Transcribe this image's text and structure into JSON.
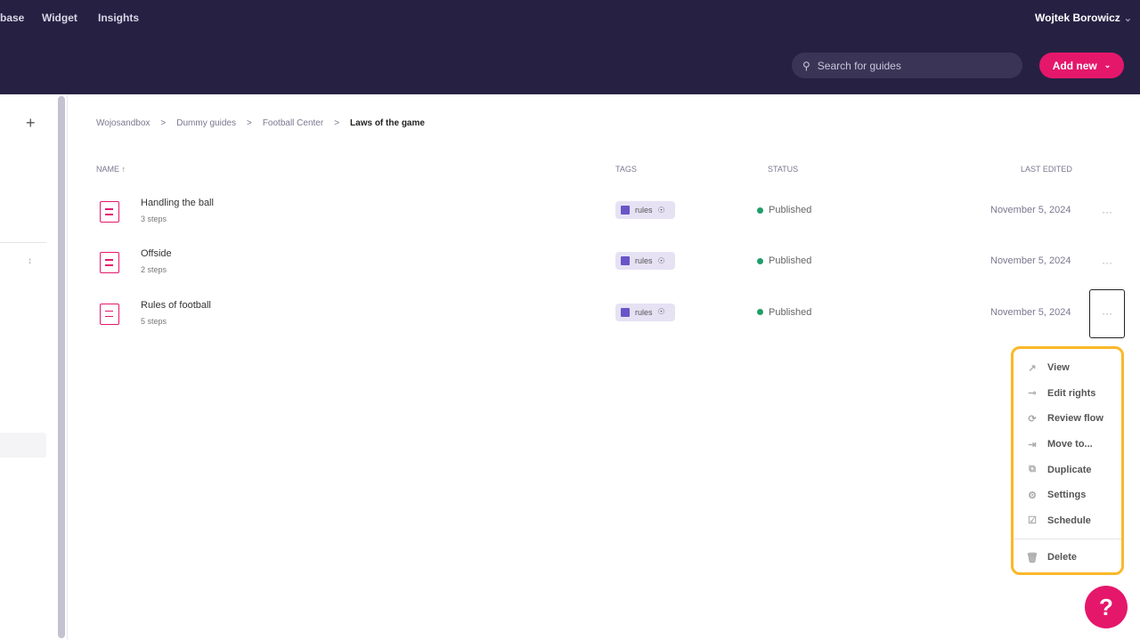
{
  "header": {
    "nav": [
      "base",
      "Widget",
      "Insights"
    ],
    "user": "Wojtek Borowicz",
    "search_placeholder": "Search for guides",
    "add_new": "Add new"
  },
  "breadcrumb": [
    "Wojosandbox",
    "Dummy guides",
    "Football Center",
    "Laws of the game"
  ],
  "table": {
    "headers": {
      "name": "NAME",
      "tags": "TAGS",
      "status": "STATUS",
      "last_edited": "LAST EDITED"
    },
    "rows": [
      {
        "name": "Handling the ball",
        "steps": "3 steps",
        "tag": "rules",
        "status": "Published",
        "date": "November 5, 2024"
      },
      {
        "name": "Offside",
        "steps": "2 steps",
        "tag": "rules",
        "status": "Published",
        "date": "November 5, 2024"
      },
      {
        "name": "Rules of football",
        "steps": "5 steps",
        "tag": "rules",
        "status": "Published",
        "date": "November 5, 2024"
      }
    ]
  },
  "menu": [
    "View",
    "Edit rights",
    "Review flow",
    "Move to...",
    "Duplicate",
    "Settings",
    "Schedule"
  ],
  "menu_delete": "Delete",
  "colors": {
    "header": "#262143",
    "accent": "#e5176b",
    "published": "#1f9e6a",
    "highlight": "#fbb829"
  }
}
